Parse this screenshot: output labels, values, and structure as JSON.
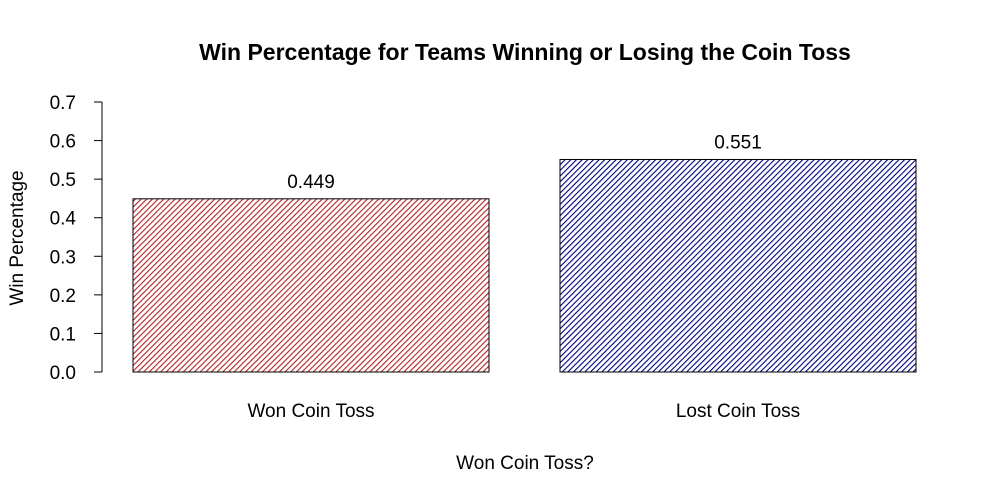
{
  "chart_data": {
    "type": "bar",
    "title": "Win Percentage for Teams Winning or Losing the Coin Toss",
    "xlabel": "Won Coin Toss?",
    "ylabel": "Win Percentage",
    "categories": [
      "Won Coin Toss",
      "Lost Coin Toss"
    ],
    "values": [
      0.449,
      0.551
    ],
    "value_labels": [
      "0.449",
      "0.551"
    ],
    "ylim": [
      0,
      0.7
    ],
    "yticks": [
      0.0,
      0.1,
      0.2,
      0.3,
      0.4,
      0.5,
      0.6,
      0.7
    ],
    "ytick_labels": [
      "0.0",
      "0.1",
      "0.2",
      "0.3",
      "0.4",
      "0.5",
      "0.6",
      "0.7"
    ],
    "bar_fill": "diagonal-hatch",
    "bar_colors": [
      "#b22222",
      "#000080"
    ],
    "grid": false,
    "legend": "none"
  }
}
